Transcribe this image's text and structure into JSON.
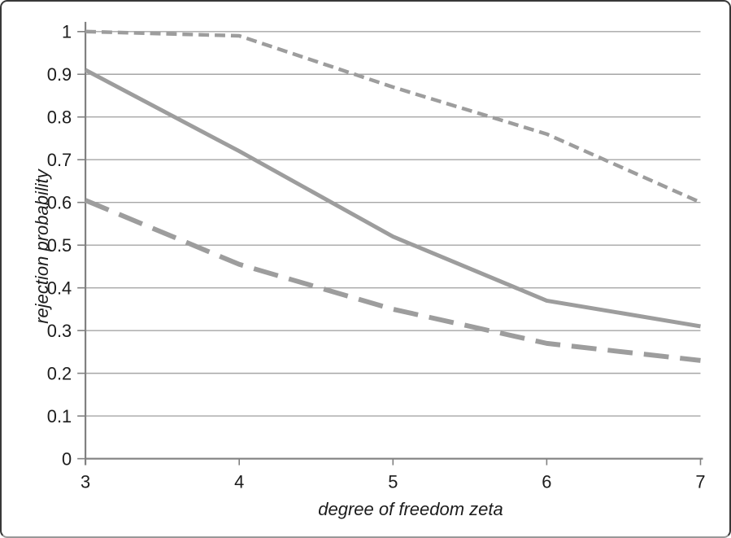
{
  "figure": {
    "background": "#ffffff",
    "border_color": "#383838",
    "border_bottom_color": "#989898"
  },
  "chart_data": {
    "type": "line",
    "xlabel": "degree of freedom zeta",
    "ylabel": "rejection probability",
    "x": [
      3,
      4,
      5,
      6,
      7
    ],
    "series": [
      {
        "name": "upper-short-dash-line",
        "style": "short-dash",
        "values": [
          1.0,
          0.99,
          0.87,
          0.76,
          0.6
        ]
      },
      {
        "name": "middle-solid-line",
        "style": "solid",
        "values": [
          0.91,
          0.72,
          0.52,
          0.37,
          0.31
        ]
      },
      {
        "name": "lower-long-dash-line",
        "style": "long-dash",
        "values": [
          0.605,
          0.455,
          0.35,
          0.27,
          0.23
        ]
      }
    ],
    "xlim": [
      3,
      7
    ],
    "ylim": [
      0,
      1
    ],
    "x_tick_labels": [
      "3",
      "4",
      "5",
      "6",
      "7"
    ],
    "y_tick_labels": [
      "0",
      "0.1",
      "0.2",
      "0.3",
      "0.4",
      "0.5",
      "0.6",
      "0.7",
      "0.8",
      "0.9",
      "1"
    ],
    "grid": "horizontal",
    "legend": "none",
    "line_color": "#9d9d9d",
    "gridline_color": "#a6a6a6",
    "axis_color": "#808080",
    "text_color": "#1c1c1c"
  }
}
